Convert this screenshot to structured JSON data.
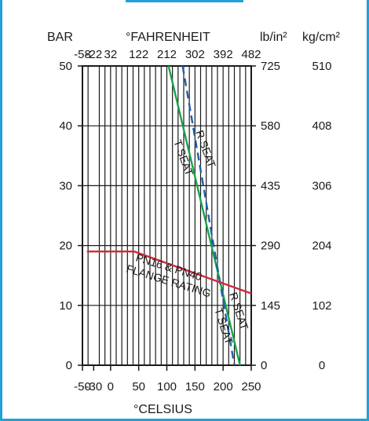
{
  "chart_data": {
    "type": "line",
    "labels": {
      "bar": "BAR",
      "fahrenheit": "°FAHRENHEIT",
      "psi": "lb/in²",
      "kgcm": "kg/cm²",
      "celsius": "°CELSIUS"
    },
    "bar_ticks": [
      "50",
      "40",
      "30",
      "20",
      "10",
      "0"
    ],
    "bar_ticks_values": [
      50,
      40,
      30,
      20,
      10,
      0
    ],
    "psi_ticks": [
      "725",
      "580",
      "435",
      "290",
      "145",
      "0"
    ],
    "kgcm_ticks": [
      "510",
      "408",
      "306",
      "204",
      "102",
      "0"
    ],
    "celsius_ticks": [
      "-50",
      "-30",
      "0",
      "50",
      "100",
      "150",
      "200",
      "250"
    ],
    "celsius_ticks_values": [
      -50,
      -30,
      0,
      50,
      100,
      150,
      200,
      250
    ],
    "fahrenheit_ticks": [
      "-58",
      "-22",
      "32",
      "122",
      "212",
      "302",
      "392",
      "482"
    ],
    "ylim": [
      0,
      50
    ],
    "xlim_celsius": [
      -50,
      250
    ],
    "series": [
      {
        "name": "T SEAT",
        "color": "#1aa34a",
        "style": "solid",
        "points": [
          [
            103,
            50
          ],
          [
            230,
            0
          ]
        ]
      },
      {
        "name": "R SEAT",
        "color": "#1f5fae",
        "style": "dashed",
        "points": [
          [
            128,
            50
          ],
          [
            220,
            0
          ]
        ]
      },
      {
        "name": "PN16 & PN40 FLANGE RATING",
        "color": "#d0293a",
        "style": "solid",
        "points": [
          [
            -42,
            19
          ],
          [
            42,
            19
          ],
          [
            250,
            12
          ]
        ]
      }
    ],
    "annotations": {
      "flange_line1": "PN16 & PN40",
      "flange_line2": "FLANGE RATING",
      "r_seat_upper": "R SEAT",
      "t_seat_upper": "T SEAT",
      "r_seat_lower": "R SEAT",
      "t_seat_lower": "T SEAT"
    }
  }
}
